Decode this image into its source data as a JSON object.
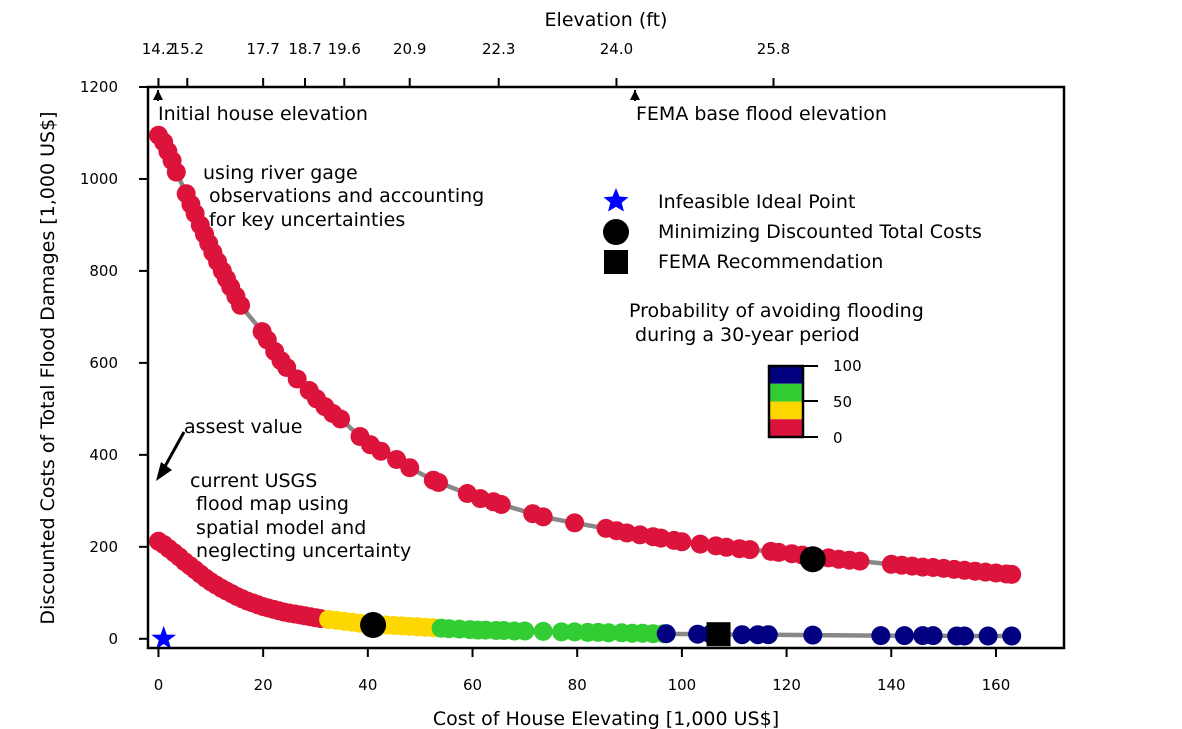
{
  "chart_data": {
    "type": "scatter",
    "xlabel": "Cost of House Elevating [1,000 US$]",
    "ylabel": "Discounted Costs of Total Flood Damages [1,000 US$]",
    "top_axis_label": "Elevation (ft)",
    "xlim": [
      -2,
      173
    ],
    "ylim": [
      -20,
      1200
    ],
    "x_ticks": [
      0,
      20,
      40,
      60,
      80,
      100,
      120,
      140,
      160
    ],
    "y_ticks": [
      0,
      200,
      400,
      600,
      800,
      1000,
      1200
    ],
    "x_tick_labels": [
      "0",
      "20",
      "40",
      "60",
      "80",
      "100",
      "120",
      "140",
      "160"
    ],
    "y_tick_labels": [
      "0",
      "200",
      "400",
      "600",
      "800",
      "1000",
      "1200"
    ],
    "top_ticks": [
      {
        "x": 0,
        "label": "14.2"
      },
      {
        "x": 5.5,
        "label": "15.2"
      },
      {
        "x": 20,
        "label": "17.7"
      },
      {
        "x": 28,
        "label": "18.7"
      },
      {
        "x": 35.5,
        "label": "19.6"
      },
      {
        "x": 48,
        "label": "20.9"
      },
      {
        "x": 65,
        "label": "22.3"
      },
      {
        "x": 87.5,
        "label": "24.0"
      },
      {
        "x": 117.5,
        "label": "25.8"
      }
    ],
    "grid": false,
    "colors": {
      "low": "#dc143c",
      "mid_low": "#ffd700",
      "mid_high": "#32cd32",
      "high": "#000080",
      "line": "#888888",
      "ideal": "#0000ff",
      "marker": "#000000"
    },
    "series": [
      {
        "name": "using river gage observations and accounting for key uncertainties",
        "points": [
          {
            "x": 0,
            "y": 1095,
            "c": "low"
          },
          {
            "x": 1,
            "y": 1080,
            "c": "low"
          },
          {
            "x": 1.8,
            "y": 1060,
            "c": "low"
          },
          {
            "x": 2.6,
            "y": 1040,
            "c": "low"
          },
          {
            "x": 3.4,
            "y": 1015,
            "c": "low"
          },
          {
            "x": 5.3,
            "y": 968,
            "c": "low"
          },
          {
            "x": 6.2,
            "y": 945,
            "c": "low"
          },
          {
            "x": 7,
            "y": 925,
            "c": "low"
          },
          {
            "x": 8,
            "y": 900,
            "c": "low"
          },
          {
            "x": 8.8,
            "y": 880,
            "c": "low"
          },
          {
            "x": 9.6,
            "y": 860,
            "c": "low"
          },
          {
            "x": 10.4,
            "y": 840,
            "c": "low"
          },
          {
            "x": 11.3,
            "y": 820,
            "c": "low"
          },
          {
            "x": 12.2,
            "y": 800,
            "c": "low"
          },
          {
            "x": 13,
            "y": 783,
            "c": "low"
          },
          {
            "x": 13.8,
            "y": 765,
            "c": "low"
          },
          {
            "x": 14.8,
            "y": 745,
            "c": "low"
          },
          {
            "x": 15.7,
            "y": 725,
            "c": "low"
          },
          {
            "x": 19.8,
            "y": 668,
            "c": "low"
          },
          {
            "x": 20.8,
            "y": 650,
            "c": "low"
          },
          {
            "x": 22.2,
            "y": 625,
            "c": "low"
          },
          {
            "x": 23.4,
            "y": 605,
            "c": "low"
          },
          {
            "x": 24.5,
            "y": 590,
            "c": "low"
          },
          {
            "x": 26.5,
            "y": 565,
            "c": "low"
          },
          {
            "x": 28.8,
            "y": 540,
            "c": "low"
          },
          {
            "x": 30.2,
            "y": 522,
            "c": "low"
          },
          {
            "x": 31.8,
            "y": 505,
            "c": "low"
          },
          {
            "x": 33.3,
            "y": 490,
            "c": "low"
          },
          {
            "x": 34.8,
            "y": 478,
            "c": "low"
          },
          {
            "x": 38.5,
            "y": 440,
            "c": "low"
          },
          {
            "x": 40.5,
            "y": 422,
            "c": "low"
          },
          {
            "x": 42.5,
            "y": 408,
            "c": "low"
          },
          {
            "x": 45.5,
            "y": 390,
            "c": "low"
          },
          {
            "x": 48,
            "y": 372,
            "c": "low"
          },
          {
            "x": 52.5,
            "y": 345,
            "c": "low"
          },
          {
            "x": 53.5,
            "y": 340,
            "c": "low"
          },
          {
            "x": 59,
            "y": 316,
            "c": "low"
          },
          {
            "x": 61.5,
            "y": 305,
            "c": "low"
          },
          {
            "x": 64,
            "y": 298,
            "c": "low"
          },
          {
            "x": 65.5,
            "y": 292,
            "c": "low"
          },
          {
            "x": 71.5,
            "y": 272,
            "c": "low"
          },
          {
            "x": 73.5,
            "y": 265,
            "c": "low"
          },
          {
            "x": 79.5,
            "y": 252,
            "c": "low"
          },
          {
            "x": 85.5,
            "y": 240,
            "c": "low"
          },
          {
            "x": 87.5,
            "y": 235,
            "c": "low"
          },
          {
            "x": 89.5,
            "y": 230,
            "c": "low"
          },
          {
            "x": 92,
            "y": 226,
            "c": "low"
          },
          {
            "x": 94.5,
            "y": 222,
            "c": "low"
          },
          {
            "x": 96,
            "y": 219,
            "c": "low"
          },
          {
            "x": 98.5,
            "y": 214,
            "c": "low"
          },
          {
            "x": 100,
            "y": 211,
            "c": "low"
          },
          {
            "x": 103.5,
            "y": 206,
            "c": "low"
          },
          {
            "x": 106.5,
            "y": 202,
            "c": "low"
          },
          {
            "x": 108.5,
            "y": 199,
            "c": "low"
          },
          {
            "x": 111,
            "y": 196,
            "c": "low"
          },
          {
            "x": 113,
            "y": 194,
            "c": "low"
          },
          {
            "x": 117,
            "y": 190,
            "c": "low"
          },
          {
            "x": 118.5,
            "y": 188,
            "c": "low"
          },
          {
            "x": 121,
            "y": 185,
            "c": "low"
          },
          {
            "x": 123,
            "y": 182,
            "c": "low"
          },
          {
            "x": 128,
            "y": 176,
            "c": "low"
          },
          {
            "x": 130,
            "y": 173,
            "c": "low"
          },
          {
            "x": 132,
            "y": 171,
            "c": "low"
          },
          {
            "x": 134,
            "y": 169,
            "c": "low"
          },
          {
            "x": 140,
            "y": 162,
            "c": "low"
          },
          {
            "x": 142,
            "y": 160,
            "c": "low"
          },
          {
            "x": 144,
            "y": 158,
            "c": "low"
          },
          {
            "x": 146,
            "y": 156,
            "c": "low"
          },
          {
            "x": 148,
            "y": 155,
            "c": "low"
          },
          {
            "x": 150,
            "y": 153,
            "c": "low"
          },
          {
            "x": 152,
            "y": 151,
            "c": "low"
          },
          {
            "x": 154,
            "y": 149,
            "c": "low"
          },
          {
            "x": 156,
            "y": 147,
            "c": "low"
          },
          {
            "x": 158,
            "y": 145,
            "c": "low"
          },
          {
            "x": 160,
            "y": 143,
            "c": "low"
          },
          {
            "x": 162,
            "y": 141,
            "c": "low"
          },
          {
            "x": 163,
            "y": 140,
            "c": "low"
          }
        ]
      },
      {
        "name": "current USGS flood map using spatial model and neglecting uncertainty",
        "points": [
          {
            "x": 0,
            "y": 212,
            "c": "low"
          },
          {
            "x": 1,
            "y": 205,
            "c": "low"
          },
          {
            "x": 2,
            "y": 196,
            "c": "low"
          },
          {
            "x": 3,
            "y": 187,
            "c": "low"
          },
          {
            "x": 4,
            "y": 178,
            "c": "low"
          },
          {
            "x": 5,
            "y": 168,
            "c": "low"
          },
          {
            "x": 6,
            "y": 159,
            "c": "low"
          },
          {
            "x": 7,
            "y": 150,
            "c": "low"
          },
          {
            "x": 8,
            "y": 141,
            "c": "low"
          },
          {
            "x": 9,
            "y": 132,
            "c": "low"
          },
          {
            "x": 10,
            "y": 124,
            "c": "low"
          },
          {
            "x": 11,
            "y": 117,
            "c": "low"
          },
          {
            "x": 12,
            "y": 110,
            "c": "low"
          },
          {
            "x": 13,
            "y": 104,
            "c": "low"
          },
          {
            "x": 14,
            "y": 98,
            "c": "low"
          },
          {
            "x": 15,
            "y": 92,
            "c": "low"
          },
          {
            "x": 16,
            "y": 87,
            "c": "low"
          },
          {
            "x": 17,
            "y": 82,
            "c": "low"
          },
          {
            "x": 18,
            "y": 78,
            "c": "low"
          },
          {
            "x": 19,
            "y": 74,
            "c": "low"
          },
          {
            "x": 20,
            "y": 70,
            "c": "low"
          },
          {
            "x": 21,
            "y": 67,
            "c": "low"
          },
          {
            "x": 22,
            "y": 64,
            "c": "low"
          },
          {
            "x": 23,
            "y": 61,
            "c": "low"
          },
          {
            "x": 24,
            "y": 58,
            "c": "low"
          },
          {
            "x": 25,
            "y": 56,
            "c": "low"
          },
          {
            "x": 26,
            "y": 54,
            "c": "low"
          },
          {
            "x": 27,
            "y": 52,
            "c": "low"
          },
          {
            "x": 28,
            "y": 50,
            "c": "low"
          },
          {
            "x": 29,
            "y": 48,
            "c": "low"
          },
          {
            "x": 30,
            "y": 46,
            "c": "low"
          },
          {
            "x": 31,
            "y": 44,
            "c": "low"
          },
          {
            "x": 32.5,
            "y": 42,
            "c": "mid_low"
          },
          {
            "x": 34,
            "y": 40,
            "c": "mid_low"
          },
          {
            "x": 35.5,
            "y": 38,
            "c": "mid_low"
          },
          {
            "x": 37,
            "y": 36,
            "c": "mid_low"
          },
          {
            "x": 38.5,
            "y": 34,
            "c": "mid_low"
          },
          {
            "x": 43.5,
            "y": 30,
            "c": "mid_low"
          },
          {
            "x": 45,
            "y": 29,
            "c": "mid_low"
          },
          {
            "x": 46.5,
            "y": 28,
            "c": "mid_low"
          },
          {
            "x": 48,
            "y": 27,
            "c": "mid_low"
          },
          {
            "x": 49.5,
            "y": 26,
            "c": "mid_low"
          },
          {
            "x": 51,
            "y": 25,
            "c": "mid_low"
          },
          {
            "x": 52.5,
            "y": 24,
            "c": "mid_low"
          },
          {
            "x": 54,
            "y": 23,
            "c": "mid_high"
          },
          {
            "x": 55.5,
            "y": 22,
            "c": "mid_high"
          },
          {
            "x": 57.5,
            "y": 21,
            "c": "mid_high"
          },
          {
            "x": 59.5,
            "y": 20,
            "c": "mid_high"
          },
          {
            "x": 61,
            "y": 19,
            "c": "mid_high"
          },
          {
            "x": 62.5,
            "y": 19,
            "c": "mid_high"
          },
          {
            "x": 64.5,
            "y": 18,
            "c": "mid_high"
          },
          {
            "x": 66,
            "y": 18,
            "c": "mid_high"
          },
          {
            "x": 68,
            "y": 17,
            "c": "mid_high"
          },
          {
            "x": 70,
            "y": 17,
            "c": "mid_high"
          },
          {
            "x": 73.5,
            "y": 16,
            "c": "mid_high"
          },
          {
            "x": 77,
            "y": 15,
            "c": "mid_high"
          },
          {
            "x": 79.5,
            "y": 15,
            "c": "mid_high"
          },
          {
            "x": 82,
            "y": 14,
            "c": "mid_high"
          },
          {
            "x": 84,
            "y": 14,
            "c": "mid_high"
          },
          {
            "x": 86,
            "y": 13,
            "c": "mid_high"
          },
          {
            "x": 88.5,
            "y": 13,
            "c": "mid_high"
          },
          {
            "x": 90.5,
            "y": 12,
            "c": "mid_high"
          },
          {
            "x": 92.5,
            "y": 12,
            "c": "mid_high"
          },
          {
            "x": 94.5,
            "y": 11,
            "c": "mid_high"
          },
          {
            "x": 96.5,
            "y": 11,
            "c": "mid_high"
          },
          {
            "x": 97,
            "y": 11,
            "c": "high"
          },
          {
            "x": 103,
            "y": 10,
            "c": "high"
          },
          {
            "x": 105.5,
            "y": 10,
            "c": "high"
          },
          {
            "x": 111.5,
            "y": 9,
            "c": "high"
          },
          {
            "x": 114.5,
            "y": 9,
            "c": "high"
          },
          {
            "x": 116.5,
            "y": 9,
            "c": "high"
          },
          {
            "x": 125,
            "y": 8,
            "c": "high"
          },
          {
            "x": 138,
            "y": 7,
            "c": "high"
          },
          {
            "x": 142.5,
            "y": 7,
            "c": "high"
          },
          {
            "x": 146,
            "y": 7,
            "c": "high"
          },
          {
            "x": 148,
            "y": 7,
            "c": "high"
          },
          {
            "x": 152.5,
            "y": 6,
            "c": "high"
          },
          {
            "x": 154,
            "y": 6,
            "c": "high"
          },
          {
            "x": 158.5,
            "y": 6,
            "c": "high"
          },
          {
            "x": 163,
            "y": 6,
            "c": "high"
          }
        ]
      }
    ],
    "markers": [
      {
        "name": "Infeasible Ideal Point",
        "shape": "star",
        "x": 1,
        "y": 0
      },
      {
        "name": "Minimizing Discounted Total Costs",
        "shape": "circle",
        "x": 125,
        "y": 173
      },
      {
        "name": "Minimizing Discounted Total Costs",
        "shape": "circle",
        "x": 41,
        "y": 30
      },
      {
        "name": "FEMA Recommendation",
        "shape": "square",
        "x": 107,
        "y": 10
      }
    ],
    "legend": {
      "placement": "upper-right",
      "entries": [
        {
          "label": "Infeasible Ideal Point",
          "shape": "star"
        },
        {
          "label": "Minimizing Discounted Total Costs",
          "shape": "circle"
        },
        {
          "label": "FEMA Recommendation",
          "shape": "square"
        }
      ]
    },
    "colorbar": {
      "title_line1": "Probability of avoiding flooding",
      "title_line2": " during a 30-year period",
      "tick_labels": [
        "100",
        "50",
        "0"
      ],
      "bands": [
        "high",
        "mid_high",
        "mid_low",
        "low"
      ]
    },
    "annotations": {
      "initial_house": "Initial house elevation",
      "fema_bfe": "FEMA base flood elevation",
      "river_line1": "using river gage",
      "river_line2": " observations and accounting",
      "river_line3": " for key uncertainties",
      "asset_value": "assest value",
      "usgs_line1": "current USGS",
      "usgs_line2": " flood map using",
      "usgs_line3": " spatial model and",
      "usgs_line4": " neglecting uncertainty"
    }
  }
}
